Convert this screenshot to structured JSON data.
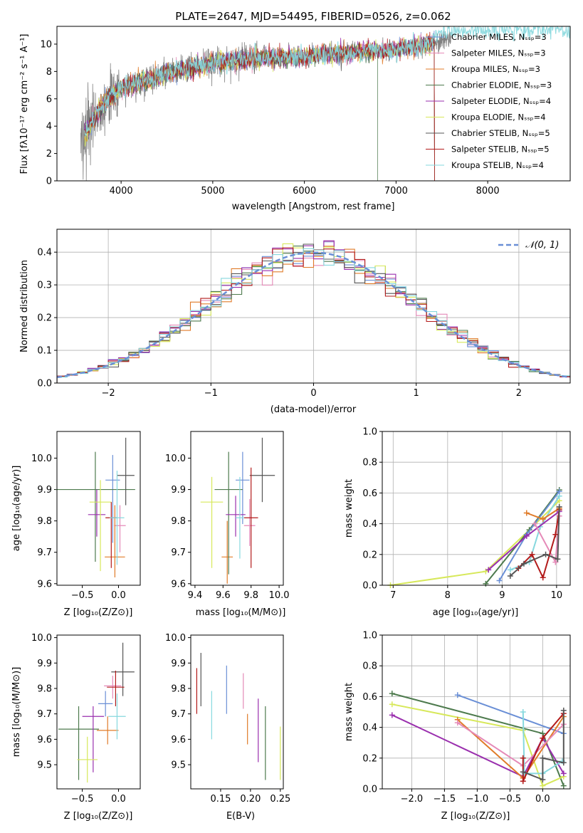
{
  "colors": {
    "Chabrier MILES": "#6a8fd6",
    "Salpeter MILES": "#e58ab8",
    "Kroupa MILES": "#e07b29",
    "Chabrier ELODIE": "#4d7a4d",
    "Salpeter ELODIE": "#9a2fae",
    "Kroupa ELODIE": "#d7e85a",
    "Chabrier STELIB": "#555555",
    "Salpeter STELIB": "#b31b1b",
    "Kroupa STELIB": "#86d8de"
  },
  "chart_data": [
    {
      "id": "spectrum",
      "type": "line",
      "title": "PLATE=2647, MJD=54495, FIBERID=0526, z=0.062",
      "xlabel": "wavelength [Angstrom, rest frame]",
      "ylabel": "Flux [fλ10⁻¹⁷ erg cm⁻² s⁻¹ A⁻¹]",
      "xlim": [
        3300,
        8900
      ],
      "ylim": [
        0,
        11.3
      ],
      "xticks": [
        4000,
        5000,
        6000,
        7000,
        8000
      ],
      "yticks": [
        0,
        2,
        4,
        6,
        8,
        10
      ],
      "legend_position": "right",
      "legend": [
        "Chabrier MILES, Nₛₛₚ=3",
        "Salpeter MILES, Nₛₛₚ=3",
        "Kroupa MILES, Nₛₛₚ=3",
        "Chabrier ELODIE, Nₛₛₚ=3",
        "Salpeter ELODIE, Nₛₛₚ=4",
        "Kroupa ELODIE, Nₛₛₚ=4",
        "Chabrier STELIB, Nₛₛₚ=5",
        "Salpeter STELIB, Nₛₛₚ=5",
        "Kroupa STELIB, Nₛₛₚ=4"
      ],
      "data_envelope": {
        "x": [
          3560,
          3700,
          3850,
          4000,
          4200,
          4400,
          4600,
          4800,
          5000,
          5200,
          5500,
          6000,
          6500,
          7000,
          7400,
          7600
        ],
        "y": [
          3.0,
          4.5,
          6.0,
          6.8,
          7.2,
          7.6,
          8.0,
          8.3,
          8.6,
          8.8,
          9.0,
          9.1,
          9.4,
          9.6,
          10.0,
          10.5
        ]
      },
      "model_end_x": [
        7420,
        7420,
        7420,
        6800,
        7420,
        7420,
        7420,
        7420,
        8900
      ]
    },
    {
      "id": "residuals",
      "type": "bar",
      "xlabel": "(data-model)/error",
      "ylabel": "Normed distribution",
      "xlim": [
        -2.5,
        2.5
      ],
      "ylim": [
        0,
        0.47
      ],
      "xticks": [
        -2,
        -1,
        0,
        1,
        2
      ],
      "xtick_labels": [
        "−2",
        "−1",
        "0",
        "1",
        "2"
      ],
      "yticks": [
        0.0,
        0.1,
        0.2,
        0.3,
        0.4
      ],
      "grid": true,
      "bin_width": 0.1,
      "legend_position": "top-right",
      "gaussian_label": "𝒩(0, 1)"
    },
    {
      "id": "age_vs_Z",
      "type": "scatter",
      "xlabel": "Z [log₁₀(Z/Z⊙)]",
      "ylabel": "age  [log₁₀(age/yr)]",
      "xlim": [
        -0.85,
        0.3
      ],
      "ylim": [
        9.595,
        10.085
      ],
      "xticks": [
        -0.5,
        0.0
      ],
      "xtick_labels": [
        "−0.5",
        "0.0"
      ],
      "yticks": [
        9.6,
        9.7,
        9.8,
        9.9,
        10.0
      ],
      "points": [
        {
          "model": "Chabrier MILES",
          "x": -0.08,
          "xerr": 0.1,
          "y": 9.93,
          "ylo": 9.73,
          "yhi": 10.01
        },
        {
          "model": "Salpeter MILES",
          "x": 0.02,
          "xerr": 0.08,
          "y": 9.785,
          "ylo": 9.7,
          "yhi": 9.85
        },
        {
          "model": "Kroupa MILES",
          "x": -0.05,
          "xerr": 0.14,
          "y": 9.685,
          "ylo": 9.62,
          "yhi": 9.85
        },
        {
          "model": "Chabrier ELODIE",
          "x": -0.32,
          "xerr": 0.55,
          "y": 9.9,
          "ylo": 9.67,
          "yhi": 10.02
        },
        {
          "model": "Salpeter ELODIE",
          "x": -0.3,
          "xerr": 0.12,
          "y": 9.82,
          "ylo": 9.75,
          "yhi": 9.9
        },
        {
          "model": "Kroupa ELODIE",
          "x": -0.25,
          "xerr": 0.15,
          "y": 9.86,
          "ylo": 9.64,
          "yhi": 9.93
        },
        {
          "model": "Chabrier STELIB",
          "x": 0.1,
          "xerr": 0.12,
          "y": 9.945,
          "ylo": 9.85,
          "yhi": 10.065
        },
        {
          "model": "Salpeter STELIB",
          "x": -0.1,
          "xerr": 0.08,
          "y": 9.81,
          "ylo": 9.65,
          "yhi": 9.86
        },
        {
          "model": "Kroupa STELIB",
          "x": -0.02,
          "xerr": 0.1,
          "y": 9.81,
          "ylo": 9.66,
          "yhi": 9.96
        }
      ]
    },
    {
      "id": "age_vs_mass",
      "type": "scatter",
      "xlabel": "mass [log₁₀(M/M⊙)]",
      "ylabel": "",
      "xlim": [
        9.37,
        10.03
      ],
      "ylim": [
        9.595,
        10.085
      ],
      "xticks": [
        9.4,
        9.6,
        9.8,
        10.0
      ],
      "xtick_labels": [
        "9.4",
        "9.6",
        "9.8",
        "10.0"
      ],
      "yticks": [
        9.6,
        9.7,
        9.8,
        9.9,
        10.0
      ],
      "points": [
        {
          "model": "Chabrier MILES",
          "x": 9.74,
          "xerr": 0.05,
          "y": 9.93,
          "ylo": 9.79,
          "yhi": 10.02
        },
        {
          "model": "Salpeter MILES",
          "x": 9.79,
          "xerr": 0.04,
          "y": 9.785,
          "ylo": 9.72,
          "yhi": 9.87
        },
        {
          "model": "Kroupa MILES",
          "x": 9.63,
          "xerr": 0.04,
          "y": 9.685,
          "ylo": 9.6,
          "yhi": 9.8
        },
        {
          "model": "Chabrier ELODIE",
          "x": 9.64,
          "xerr": 0.1,
          "y": 9.9,
          "ylo": 9.63,
          "yhi": 10.02
        },
        {
          "model": "Salpeter ELODIE",
          "x": 9.69,
          "xerr": 0.07,
          "y": 9.82,
          "ylo": 9.75,
          "yhi": 9.88
        },
        {
          "model": "Kroupa ELODIE",
          "x": 9.52,
          "xerr": 0.08,
          "y": 9.86,
          "ylo": 9.65,
          "yhi": 9.94
        },
        {
          "model": "Chabrier STELIB",
          "x": 9.88,
          "xerr": 0.09,
          "y": 9.945,
          "ylo": 9.86,
          "yhi": 10.065
        },
        {
          "model": "Salpeter STELIB",
          "x": 9.8,
          "xerr": 0.05,
          "y": 9.81,
          "ylo": 9.65,
          "yhi": 9.97
        },
        {
          "model": "Kroupa STELIB",
          "x": 9.72,
          "xerr": 0.03,
          "y": 9.81,
          "ylo": 9.68,
          "yhi": 9.94
        }
      ]
    },
    {
      "id": "weight_vs_age",
      "type": "line",
      "xlabel": "age  [log₁₀(age/yr)]",
      "ylabel": "mass weight",
      "xlim": [
        6.8,
        10.25
      ],
      "ylim": [
        0,
        1
      ],
      "xticks": [
        7,
        8,
        9,
        10
      ],
      "xtick_labels": [
        "7",
        "8",
        "9",
        "10"
      ],
      "yticks": [
        0.0,
        0.2,
        0.4,
        0.6,
        0.8,
        1.0
      ],
      "grid": true,
      "series": [
        {
          "model": "Kroupa ELODIE",
          "x": [
            6.95,
            8.7,
            9.5,
            10.05
          ],
          "y": [
            0.0,
            0.09,
            0.36,
            0.55
          ]
        },
        {
          "model": "Chabrier ELODIE",
          "x": [
            8.7,
            9.5,
            10.05
          ],
          "y": [
            0.01,
            0.36,
            0.62
          ]
        },
        {
          "model": "Kroupa STELIB",
          "x": [
            9.15,
            9.5,
            9.7,
            10.05
          ],
          "y": [
            0.1,
            0.15,
            0.38,
            0.58
          ]
        },
        {
          "model": "Chabrier MILES",
          "x": [
            8.95,
            9.45,
            10.05
          ],
          "y": [
            0.03,
            0.33,
            0.61
          ]
        },
        {
          "model": "Salpeter ELODIE",
          "x": [
            8.75,
            9.45,
            10.05
          ],
          "y": [
            0.1,
            0.32,
            0.48
          ]
        },
        {
          "model": "Kroupa MILES",
          "x": [
            9.45,
            9.75,
            10.05
          ],
          "y": [
            0.47,
            0.43,
            0.5
          ]
        },
        {
          "model": "Salpeter MILES",
          "x": [
            9.6,
            9.98,
            10.05
          ],
          "y": [
            0.4,
            0.15,
            0.45
          ]
        },
        {
          "model": "Salpeter STELIB",
          "x": [
            9.3,
            9.55,
            9.75,
            9.98,
            10.05
          ],
          "y": [
            0.11,
            0.2,
            0.05,
            0.33,
            0.49
          ]
        },
        {
          "model": "Chabrier STELIB",
          "x": [
            9.15,
            9.4,
            9.8,
            10.02,
            10.05
          ],
          "y": [
            0.06,
            0.14,
            0.2,
            0.17,
            0.51
          ]
        }
      ]
    },
    {
      "id": "mass_vs_Z",
      "type": "scatter",
      "xlabel": "Z [log₁₀(Z/Z⊙)]",
      "ylabel": "mass [log₁₀(M/M⊙)]",
      "xlim": [
        -0.85,
        0.3
      ],
      "ylim": [
        9.405,
        10.01
      ],
      "xticks": [
        -0.5,
        0.0
      ],
      "xtick_labels": [
        "−0.5",
        "0.0"
      ],
      "yticks": [
        9.5,
        9.6,
        9.7,
        9.8,
        9.9,
        10.0
      ],
      "points": [
        {
          "model": "Chabrier MILES",
          "x": -0.18,
          "xerr": 0.1,
          "y": 9.74,
          "ylo": 9.69,
          "yhi": 9.79
        },
        {
          "model": "Salpeter MILES",
          "x": -0.08,
          "xerr": 0.12,
          "y": 9.81,
          "ylo": 9.76,
          "yhi": 9.85
        },
        {
          "model": "Kroupa MILES",
          "x": -0.15,
          "xerr": 0.15,
          "y": 9.635,
          "ylo": 9.58,
          "yhi": 9.69
        },
        {
          "model": "Chabrier ELODIE",
          "x": -0.55,
          "xerr": 0.28,
          "y": 9.64,
          "ylo": 9.44,
          "yhi": 9.73
        },
        {
          "model": "Salpeter ELODIE",
          "x": -0.35,
          "xerr": 0.15,
          "y": 9.69,
          "ylo": 9.47,
          "yhi": 9.73
        },
        {
          "model": "Kroupa ELODIE",
          "x": -0.43,
          "xerr": 0.14,
          "y": 9.52,
          "ylo": 9.43,
          "yhi": 9.61
        },
        {
          "model": "Chabrier STELIB",
          "x": 0.06,
          "xerr": 0.16,
          "y": 9.865,
          "ylo": 9.77,
          "yhi": 9.98
        },
        {
          "model": "Salpeter STELIB",
          "x": -0.04,
          "xerr": 0.12,
          "y": 9.805,
          "ylo": 9.73,
          "yhi": 9.87
        },
        {
          "model": "Kroupa STELIB",
          "x": -0.02,
          "xerr": 0.12,
          "y": 9.69,
          "ylo": 9.6,
          "yhi": 9.78
        }
      ]
    },
    {
      "id": "mass_vs_ebv",
      "type": "scatter",
      "xlabel": "E(B-V)",
      "ylabel": "",
      "xlim": [
        0.1,
        0.255
      ],
      "ylim": [
        9.405,
        10.01
      ],
      "xticks": [
        0.15,
        0.2,
        0.25
      ],
      "xtick_labels": [
        "0.15",
        "0.20",
        "0.25"
      ],
      "yticks": [
        9.5,
        9.6,
        9.7,
        9.8,
        9.9,
        10.0
      ],
      "points": [
        {
          "model": "Salpeter STELIB",
          "x": 0.11,
          "y": 9.79,
          "ylo": 9.7,
          "yhi": 9.88
        },
        {
          "model": "Chabrier STELIB",
          "x": 0.117,
          "y": 9.86,
          "ylo": 9.73,
          "yhi": 9.94
        },
        {
          "model": "Kroupa STELIB",
          "x": 0.135,
          "y": 9.69,
          "ylo": 9.6,
          "yhi": 9.79
        },
        {
          "model": "Chabrier MILES",
          "x": 0.16,
          "y": 9.79,
          "ylo": 9.7,
          "yhi": 9.89
        },
        {
          "model": "Salpeter MILES",
          "x": 0.188,
          "y": 9.79,
          "ylo": 9.72,
          "yhi": 9.86
        },
        {
          "model": "Kroupa MILES",
          "x": 0.195,
          "y": 9.635,
          "ylo": 9.58,
          "yhi": 9.7
        },
        {
          "model": "Salpeter ELODIE",
          "x": 0.213,
          "y": 9.66,
          "ylo": 9.51,
          "yhi": 9.76
        },
        {
          "model": "Chabrier ELODIE",
          "x": 0.225,
          "y": 9.6,
          "ylo": 9.44,
          "yhi": 9.73
        },
        {
          "model": "Kroupa ELODIE",
          "x": 0.25,
          "y": 9.54,
          "ylo": 9.44,
          "yhi": 9.65
        }
      ]
    },
    {
      "id": "weight_vs_Z",
      "type": "line",
      "xlabel": "Z [log₁₀(Z/Z⊙)]",
      "ylabel": "mass weight",
      "xlim": [
        -2.45,
        0.42
      ],
      "ylim": [
        0,
        1
      ],
      "xticks": [
        -2.0,
        -1.5,
        -1.0,
        -0.5,
        0.0
      ],
      "xtick_labels": [
        "−2.0",
        "−1.5",
        "−1.0",
        "−0.5",
        "0.0"
      ],
      "yticks": [
        0.0,
        0.2,
        0.4,
        0.6,
        0.8,
        1.0
      ],
      "grid": true,
      "series": [
        {
          "model": "Chabrier ELODIE",
          "x": [
            -2.3,
            0.0,
            0.32
          ],
          "y": [
            0.62,
            0.36,
            0.02
          ]
        },
        {
          "model": "Kroupa ELODIE",
          "x": [
            -2.3,
            -0.3,
            0.0,
            0.32
          ],
          "y": [
            0.55,
            0.38,
            0.02,
            0.08
          ]
        },
        {
          "model": "Salpeter ELODIE",
          "x": [
            -2.3,
            -0.3,
            0.0,
            0.32
          ],
          "y": [
            0.48,
            0.08,
            0.33,
            0.1
          ]
        },
        {
          "model": "Chabrier MILES",
          "x": [
            -1.3,
            0.32
          ],
          "y": [
            0.61,
            0.36
          ]
        },
        {
          "model": "Kroupa MILES",
          "x": [
            -1.3,
            -0.3,
            0.32
          ],
          "y": [
            0.45,
            0.07,
            0.47
          ]
        },
        {
          "model": "Salpeter MILES",
          "x": [
            -1.3,
            -0.3,
            0.32
          ],
          "y": [
            0.43,
            0.15,
            0.42
          ]
        },
        {
          "model": "Kroupa STELIB",
          "x": [
            -0.3,
            -0.28,
            0.0,
            0.3
          ],
          "y": [
            0.5,
            0.1,
            0.1,
            0.18
          ]
        },
        {
          "model": "Salpeter STELIB",
          "x": [
            -0.3,
            -0.3,
            0.0,
            0.32
          ],
          "y": [
            0.2,
            0.05,
            0.33,
            0.49
          ]
        },
        {
          "model": "Chabrier STELIB",
          "x": [
            -0.3,
            0.0,
            0.0,
            0.32,
            0.32
          ],
          "y": [
            0.11,
            0.06,
            0.2,
            0.17,
            0.51
          ]
        }
      ]
    }
  ]
}
